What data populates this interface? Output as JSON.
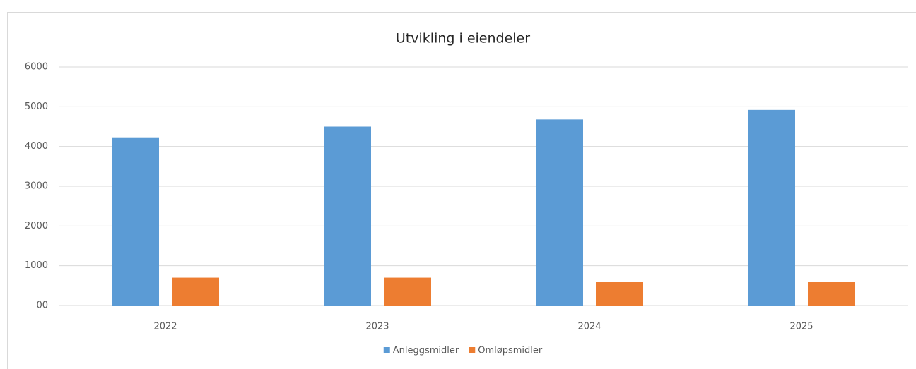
{
  "chart_data": {
    "type": "bar",
    "title": "Utvikling i eiendeler",
    "categories": [
      "2022",
      "2023",
      "2024",
      "2025"
    ],
    "series": [
      {
        "name": "Anleggsmidler",
        "color": "#5b9bd5",
        "values": [
          4230,
          4500,
          4680,
          4920
        ]
      },
      {
        "name": "Omløpsmidler",
        "color": "#ed7d31",
        "values": [
          700,
          700,
          600,
          590
        ]
      }
    ],
    "ylim": [
      0,
      6000
    ],
    "yticks": [
      {
        "value": 0,
        "label": "00"
      },
      1000,
      2000,
      3000,
      4000,
      5000,
      6000
    ],
    "grid": true,
    "legend": "bottom"
  }
}
